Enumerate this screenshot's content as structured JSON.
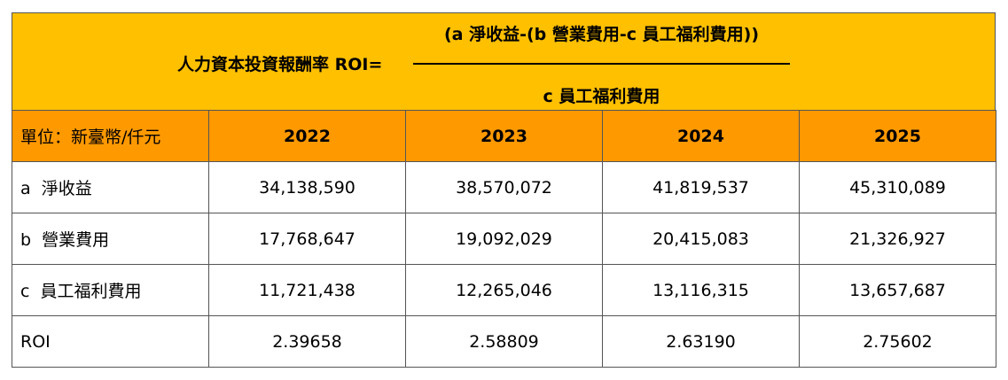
{
  "formula": {
    "label": "人力資本投資報酬率 ROI=",
    "numerator": "(a 淨收益-(b 營業費用-c 員工福利費用))",
    "denominator": "c 員工福利費用"
  },
  "table": {
    "unit_label": "單位：新臺幣/仟元",
    "years": [
      "2022",
      "2023",
      "2024",
      "2025"
    ],
    "rows": [
      {
        "label": "a  淨收益",
        "values": [
          "34,138,590",
          "38,570,072",
          "41,819,537",
          "45,310,089"
        ]
      },
      {
        "label": "b  營業費用",
        "values": [
          "17,768,647",
          "19,092,029",
          "20,415,083",
          "21,326,927"
        ]
      },
      {
        "label": "c  員工福利費用",
        "values": [
          "11,721,438",
          "12,265,046",
          "13,116,315",
          "13,657,687"
        ]
      },
      {
        "label": "ROI",
        "values": [
          "2.39658",
          "2.58809",
          "2.63190",
          "2.75602"
        ]
      }
    ]
  },
  "colors": {
    "formula_bg": "#FFC000",
    "header_bg": "#FF9900",
    "border": "#555555"
  }
}
